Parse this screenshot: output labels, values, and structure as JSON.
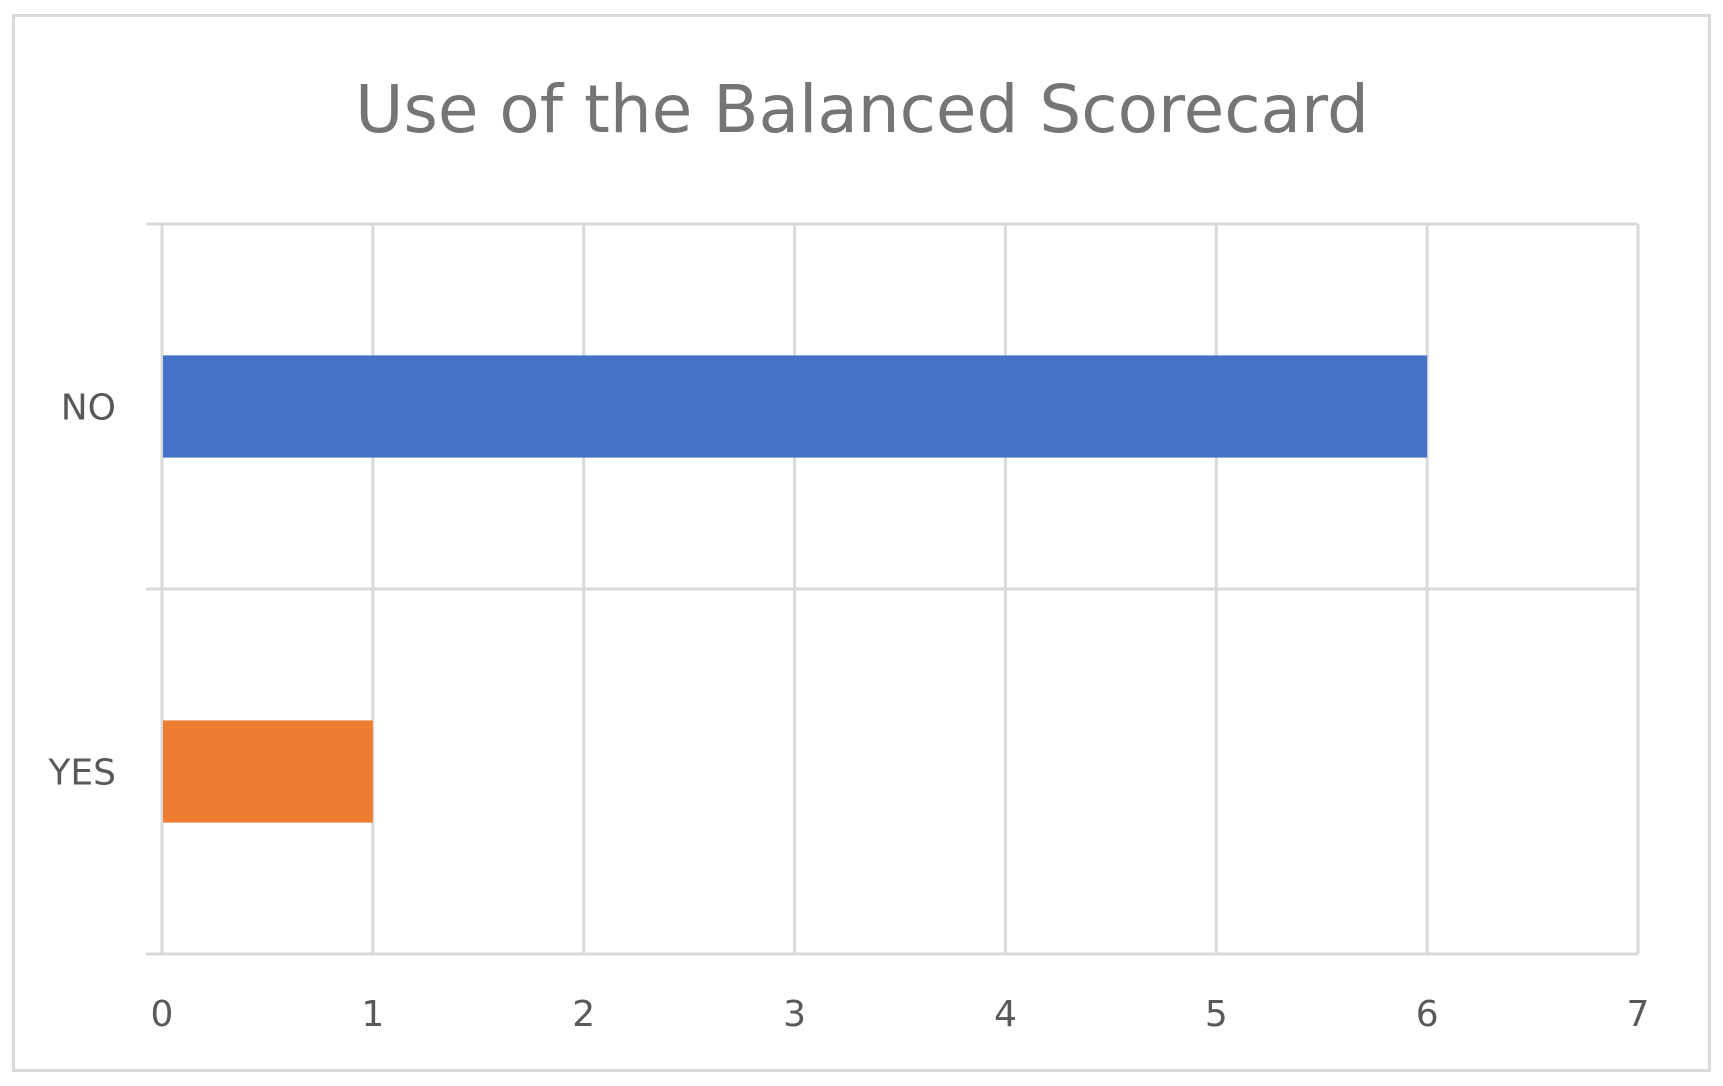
{
  "chart_data": {
    "type": "bar",
    "orientation": "horizontal",
    "title": "Use of the Balanced Scorecard",
    "xlabel": "",
    "ylabel": "",
    "categories": [
      "NO",
      "YES"
    ],
    "values": [
      6,
      1
    ],
    "bar_colors": [
      "#4472c4",
      "#ed7d31"
    ],
    "xlim": [
      0,
      7
    ],
    "xticks": [
      0,
      1,
      2,
      3,
      4,
      5,
      6,
      7
    ],
    "grid": true,
    "legend": "none"
  }
}
